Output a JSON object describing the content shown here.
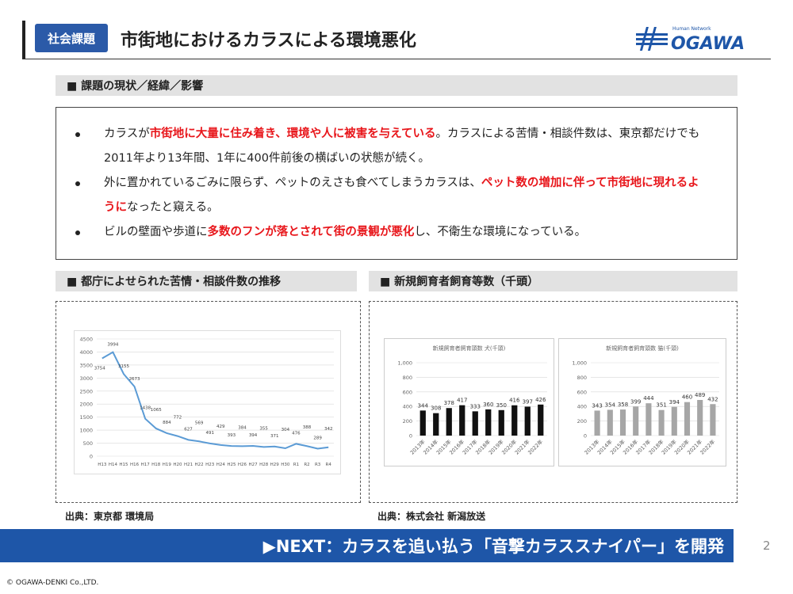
{
  "header": {
    "tag": "社会課題",
    "title": "市街地におけるカラスによる環境悪化",
    "logo_sub": "Human Network",
    "logo": "OGAWA"
  },
  "section1": {
    "heading": "■ 課題の現状／経緯／影響",
    "bullets": [
      [
        {
          "text": "カラスが",
          "emphasis": false
        },
        {
          "text": "市街地に大量に住み着き、環境や人に被害を与えている",
          "emphasis": true
        },
        {
          "text": "。カラスによる苦情・相談件数は、東京都だけでも2011年より13年間、1年に400件前後の横ばいの状態が続く。",
          "emphasis": false
        }
      ],
      [
        {
          "text": "外に置かれているごみに限らず、ペットのえさも食べてしまうカラスは、",
          "emphasis": false
        },
        {
          "text": "ペット数の増加に伴って市街地に現れるように",
          "emphasis": true
        },
        {
          "text": "なったと窺える。",
          "emphasis": false
        }
      ],
      [
        {
          "text": "ビルの壁面や歩道に",
          "emphasis": false
        },
        {
          "text": "多数のフンが落とされて街の景観が悪化",
          "emphasis": true
        },
        {
          "text": "し、不衛生な環境になっている。",
          "emphasis": false
        }
      ]
    ]
  },
  "section2": {
    "heading": "■ 都庁によせられた苦情・相談件数の推移",
    "source": "出典：東京都 環境局"
  },
  "section3": {
    "heading": "■ 新規飼育者飼育等数（千頭）",
    "source": "出典：株式会社 新潟放送"
  },
  "banner": "▶NEXT：カラスを追い払う「音撃カラススナイパー」を開発",
  "page_number": "2",
  "copyright": "© OGAWA-DENKI Co.,LTD.",
  "chart_data": [
    {
      "type": "line",
      "color": "#5b9bd5",
      "grid": true,
      "categories": [
        "H13",
        "H14",
        "H15",
        "H16",
        "H17",
        "H18",
        "H19",
        "H20",
        "H21",
        "H22",
        "H23",
        "H24",
        "H25",
        "H26",
        "H27",
        "H28",
        "H29",
        "H30",
        "R1",
        "R2",
        "R3",
        "R4"
      ],
      "values": [
        3754,
        3994,
        3155,
        2673,
        1438,
        1065,
        884,
        772,
        627,
        569,
        491,
        429,
        393,
        384,
        394,
        355,
        371,
        304,
        476,
        388,
        289,
        342
      ],
      "ylim": [
        0,
        4500
      ],
      "yticks": [
        0,
        500,
        1000,
        1500,
        2000,
        2500,
        3000,
        3500,
        4000,
        4500
      ]
    },
    {
      "type": "bar",
      "title": "新規飼育者飼育頭数 犬(千頭)",
      "color": "#111111",
      "grid": true,
      "categories": [
        "2013年",
        "2014年",
        "2015年",
        "2016年",
        "2017年",
        "2018年",
        "2019年",
        "2020年",
        "2021年",
        "2022年"
      ],
      "values": [
        344,
        308,
        378,
        417,
        333,
        360,
        350,
        416,
        397,
        426
      ],
      "ylim": [
        0,
        1000
      ],
      "yticks": [
        0,
        200,
        400,
        600,
        800,
        {
          "value": 1000,
          "label": "1,000"
        }
      ]
    },
    {
      "type": "bar",
      "title": "新規飼育者飼育頭数 猫(千頭)",
      "color": "#a6a6a6",
      "grid": true,
      "categories": [
        "2013年",
        "2014年",
        "2015年",
        "2016年",
        "2017年",
        "2018年",
        "2019年",
        "2020年",
        "2021年",
        "2022年"
      ],
      "values": [
        343,
        354,
        358,
        399,
        444,
        351,
        394,
        460,
        489,
        432
      ],
      "ylim": [
        0,
        1000
      ],
      "yticks": [
        0,
        200,
        400,
        600,
        800,
        {
          "value": 1000,
          "label": "1,000"
        }
      ]
    }
  ]
}
